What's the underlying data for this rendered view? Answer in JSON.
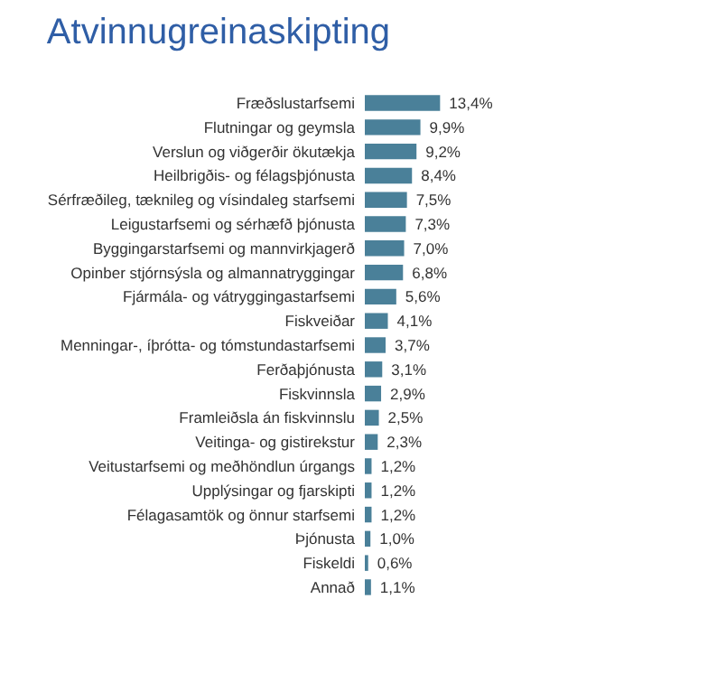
{
  "chart_data": {
    "type": "bar",
    "orientation": "horizontal",
    "title": "Atvinnugreinaskipting",
    "color": "#4a8099",
    "categories": [
      "Fræðslustarfsemi",
      "Flutningar og geymsla",
      "Verslun og viðgerðir ökutækja",
      "Heilbrigðis- og félagsþjónusta",
      "Sérfræðileg, tæknileg og vísindaleg starfsemi",
      "Leigustarfsemi og sérhæfð þjónusta",
      "Byggingarstarfsemi og mannvirkjagerð",
      "Opinber stjórnsýsla og almannatryggingar",
      "Fjármála- og vátryggingastarfsemi",
      "Fiskveiðar",
      "Menningar-, íþrótta- og tómstundastarfsemi",
      "Ferðaþjónusta",
      "Fiskvinnsla",
      "Framleiðsla án fiskvinnslu",
      "Veitinga- og gistirekstur",
      "Veitustarfsemi og meðhöndlun úrgangs",
      "Upplýsingar og fjarskipti",
      "Félagasamtök og önnur starfsemi",
      "Þjónusta",
      "Fiskeldi",
      "Annað"
    ],
    "values": [
      13.4,
      9.9,
      9.2,
      8.4,
      7.5,
      7.3,
      7.0,
      6.8,
      5.6,
      4.1,
      3.7,
      3.1,
      2.9,
      2.5,
      2.3,
      1.2,
      1.2,
      1.2,
      1.0,
      0.6,
      1.1
    ],
    "value_labels": [
      "13,4%",
      "9,9%",
      "9,2%",
      "8,4%",
      "7,5%",
      "7,3%",
      "7,0%",
      "6,8%",
      "5,6%",
      "4,1%",
      "3,7%",
      "3,1%",
      "2,9%",
      "2,5%",
      "2,3%",
      "1,2%",
      "1,2%",
      "1,2%",
      "1,0%",
      "0,6%",
      "1,1%"
    ]
  }
}
